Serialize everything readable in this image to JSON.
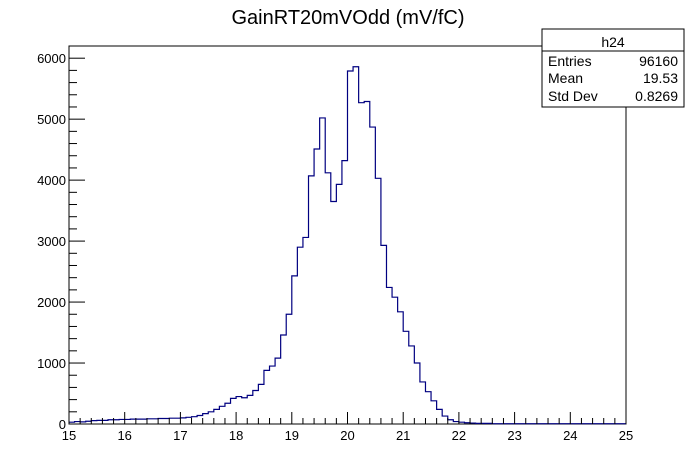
{
  "chart_data": {
    "type": "bar",
    "title": "GainRT20mVOdd (mV/fC)",
    "xlabel": "",
    "ylabel": "",
    "xlim": [
      15,
      25
    ],
    "ylim": [
      0,
      6200
    ],
    "x_ticks": [
      "15",
      "16",
      "17",
      "18",
      "19",
      "20",
      "21",
      "22",
      "23",
      "24",
      "25"
    ],
    "y_ticks": [
      "0",
      "1000",
      "2000",
      "3000",
      "4000",
      "5000",
      "6000"
    ],
    "y_tick_values": [
      0,
      1000,
      2000,
      3000,
      4000,
      5000,
      6000
    ],
    "bin_start": 15,
    "bin_width": 0.1,
    "values": [
      30,
      40,
      35,
      45,
      55,
      60,
      60,
      70,
      70,
      75,
      75,
      80,
      80,
      80,
      85,
      85,
      90,
      90,
      95,
      95,
      100,
      110,
      120,
      140,
      170,
      200,
      240,
      290,
      340,
      420,
      450,
      430,
      470,
      550,
      650,
      880,
      950,
      1080,
      1460,
      1800,
      2430,
      2900,
      3060,
      4070,
      4510,
      5020,
      4120,
      3650,
      3930,
      4320,
      5790,
      5860,
      5270,
      5290,
      4870,
      4030,
      2930,
      2240,
      2080,
      1840,
      1520,
      1280,
      1000,
      690,
      530,
      380,
      240,
      130,
      70,
      40,
      30,
      20,
      15,
      10,
      10,
      10,
      5,
      5,
      5,
      5,
      5,
      5,
      5,
      5,
      5,
      5,
      5,
      5,
      5,
      5,
      5,
      5,
      5,
      5,
      5,
      5,
      5,
      5,
      5,
      5
    ],
    "stats": {
      "name": "h24",
      "rows": [
        {
          "label": "Entries",
          "value": "96160"
        },
        {
          "label": "Mean",
          "value": "19.53"
        },
        {
          "label": "Std Dev",
          "value": "0.8269"
        }
      ]
    },
    "line_color": "#000080",
    "grid": false
  }
}
